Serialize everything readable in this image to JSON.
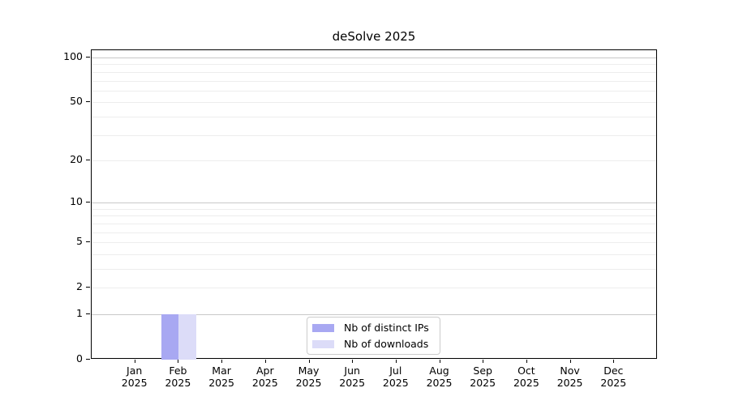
{
  "chart_data": {
    "type": "bar",
    "title": "deSolve 2025",
    "categories": [
      "Jan 2025",
      "Feb 2025",
      "Mar 2025",
      "Apr 2025",
      "May 2025",
      "Jun 2025",
      "Jul 2025",
      "Aug 2025",
      "Sep 2025",
      "Oct 2025",
      "Nov 2025",
      "Dec 2025"
    ],
    "series": [
      {
        "name": "Nb of distinct IPs",
        "color": "#a8a8f2",
        "values": [
          0,
          1,
          0,
          0,
          0,
          0,
          0,
          0,
          0,
          0,
          0,
          0
        ]
      },
      {
        "name": "Nb of downloads",
        "color": "#dcdcf8",
        "values": [
          0,
          1,
          0,
          0,
          0,
          0,
          0,
          0,
          0,
          0,
          0,
          0
        ]
      }
    ],
    "xlabel": "",
    "ylabel": "",
    "ylim": [
      0,
      100
    ],
    "y_scale": "log1p",
    "y_ticks": [
      0,
      1,
      2,
      5,
      10,
      20,
      50,
      100
    ],
    "y_gridlines": {
      "major": [
        1,
        10,
        100
      ],
      "minor": [
        2,
        3,
        4,
        5,
        6,
        7,
        8,
        9,
        20,
        30,
        40,
        50,
        60,
        70,
        80,
        90
      ]
    },
    "grid": true,
    "legend_position": "bottom-center"
  }
}
